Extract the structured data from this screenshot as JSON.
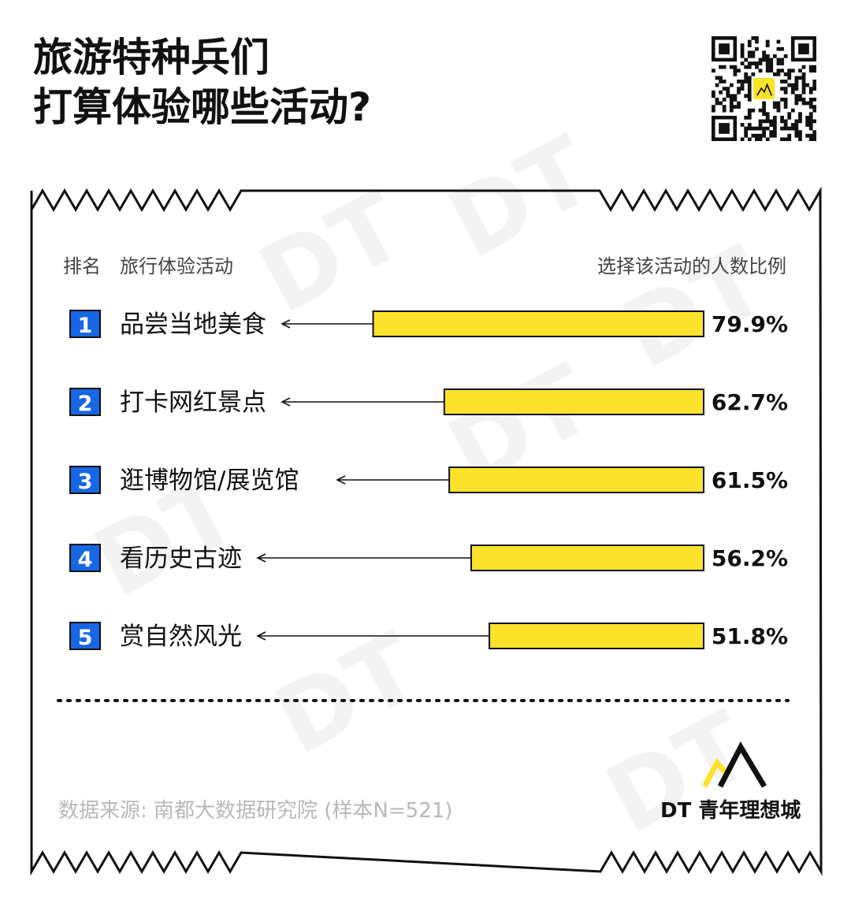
{
  "title": {
    "line1": "旅游特种兵们",
    "line2": "打算体验哪些活动?"
  },
  "header": {
    "rank": "排名",
    "activity": "旅行体验活动",
    "percent": "选择该活动的人数比例"
  },
  "colors": {
    "bar": "#FCE22A",
    "rank_badge": "#1667E3",
    "text": "#111111",
    "footnote": "#B8B8B8"
  },
  "chart_data": {
    "type": "bar",
    "orientation": "horizontal",
    "categories": [
      "品尝当地美食",
      "打卡网红景点",
      "逛博物馆/展览馆",
      "看历史古迹",
      "赏自然风光"
    ],
    "ranks": [
      "1",
      "2",
      "3",
      "4",
      "5"
    ],
    "values": [
      79.9,
      62.7,
      61.5,
      56.2,
      51.8
    ],
    "value_labels": [
      "79.9%",
      "62.7%",
      "61.5%",
      "56.2%",
      "51.8%"
    ],
    "xlim": [
      0,
      100
    ],
    "unit": "%"
  },
  "footnote": "数据来源: 南都大数据研究院 (样本N=521)",
  "brand": {
    "name": "DT 青年理想城",
    "watermark": "DT"
  }
}
